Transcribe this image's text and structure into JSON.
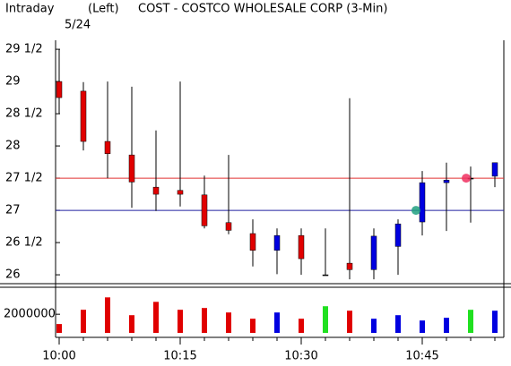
{
  "chart_data": {
    "type": "candlestick",
    "title": "COST - COSTCO WHOLESALE CORP  (3-Min)",
    "header": [
      "Intraday",
      "(Left)"
    ],
    "date": "5/24",
    "categories": [
      "10:00",
      null,
      null,
      null,
      null,
      "10:15",
      null,
      null,
      null,
      null,
      "10:30",
      null,
      null,
      null,
      null,
      "10:45",
      null,
      null,
      null
    ],
    "open": [
      29.0,
      28.85,
      28.07,
      27.86,
      27.36,
      27.31,
      27.24,
      26.81,
      26.64,
      26.38,
      26.61,
      26.0,
      26.18,
      26.08,
      26.44,
      26.82,
      27.43,
      27.5,
      27.53
    ],
    "high": [
      29.5,
      28.99,
      29.0,
      28.92,
      28.24,
      29.0,
      27.54,
      27.86,
      26.86,
      26.72,
      26.72,
      26.72,
      28.74,
      26.72,
      26.86,
      27.61,
      27.74,
      27.68,
      27.74
    ],
    "low": [
      28.5,
      27.93,
      27.5,
      27.04,
      26.99,
      27.06,
      26.72,
      26.63,
      26.13,
      26.01,
      26.0,
      26.0,
      25.93,
      25.93,
      26.0,
      26.61,
      26.68,
      26.81,
      27.36
    ],
    "close": [
      28.75,
      28.07,
      27.88,
      27.44,
      27.25,
      27.25,
      26.76,
      26.69,
      26.38,
      26.61,
      26.25,
      26.0,
      26.08,
      26.6,
      26.79,
      27.43,
      27.47,
      27.5,
      27.74
    ],
    "colors": [
      "#e00000",
      "#e00000",
      "#e00000",
      "#e00000",
      "#e00000",
      "#e00000",
      "#e00000",
      "#e00000",
      "#e00000",
      "#0000e0",
      "#e00000",
      "#000000",
      "#e00000",
      "#0000e0",
      "#0000e0",
      "#0000e0",
      "#0000e0",
      "#000000",
      "#0000e0"
    ],
    "ylim": [
      25.89,
      29.64
    ],
    "yticks": [
      {
        "value": 29.5,
        "label": "29 1/2"
      },
      29,
      {
        "value": 28.5,
        "label": "28 1/2"
      },
      28,
      {
        "value": 27.5,
        "label": "27 1/2"
      },
      27,
      {
        "value": 26.5,
        "label": "26 1/2"
      },
      26
    ],
    "reference_lines": [
      {
        "value": 27.5,
        "color": "#e03030"
      },
      {
        "value": 27,
        "color": "#2020a0"
      }
    ],
    "volume": {
      "values": [
        950000,
        2480000,
        3810000,
        1900000,
        3330000,
        2480000,
        2670000,
        2190000,
        1520000,
        2190000,
        1520000,
        2860000,
        2380000,
        1520000,
        1900000,
        1330000,
        1620000,
        2480000,
        2380000
      ],
      "colors": [
        "#e00000",
        "#e00000",
        "#e00000",
        "#e00000",
        "#e00000",
        "#e00000",
        "#e00000",
        "#e00000",
        "#e00000",
        "#0000e0",
        "#e00000",
        "#20e020",
        "#e00000",
        "#0000e0",
        "#0000e0",
        "#0000e0",
        "#0000e0",
        "#20e020",
        "#0000e0"
      ],
      "ylim": [
        0,
        4800000
      ],
      "yticks": [
        2000000
      ]
    }
  }
}
